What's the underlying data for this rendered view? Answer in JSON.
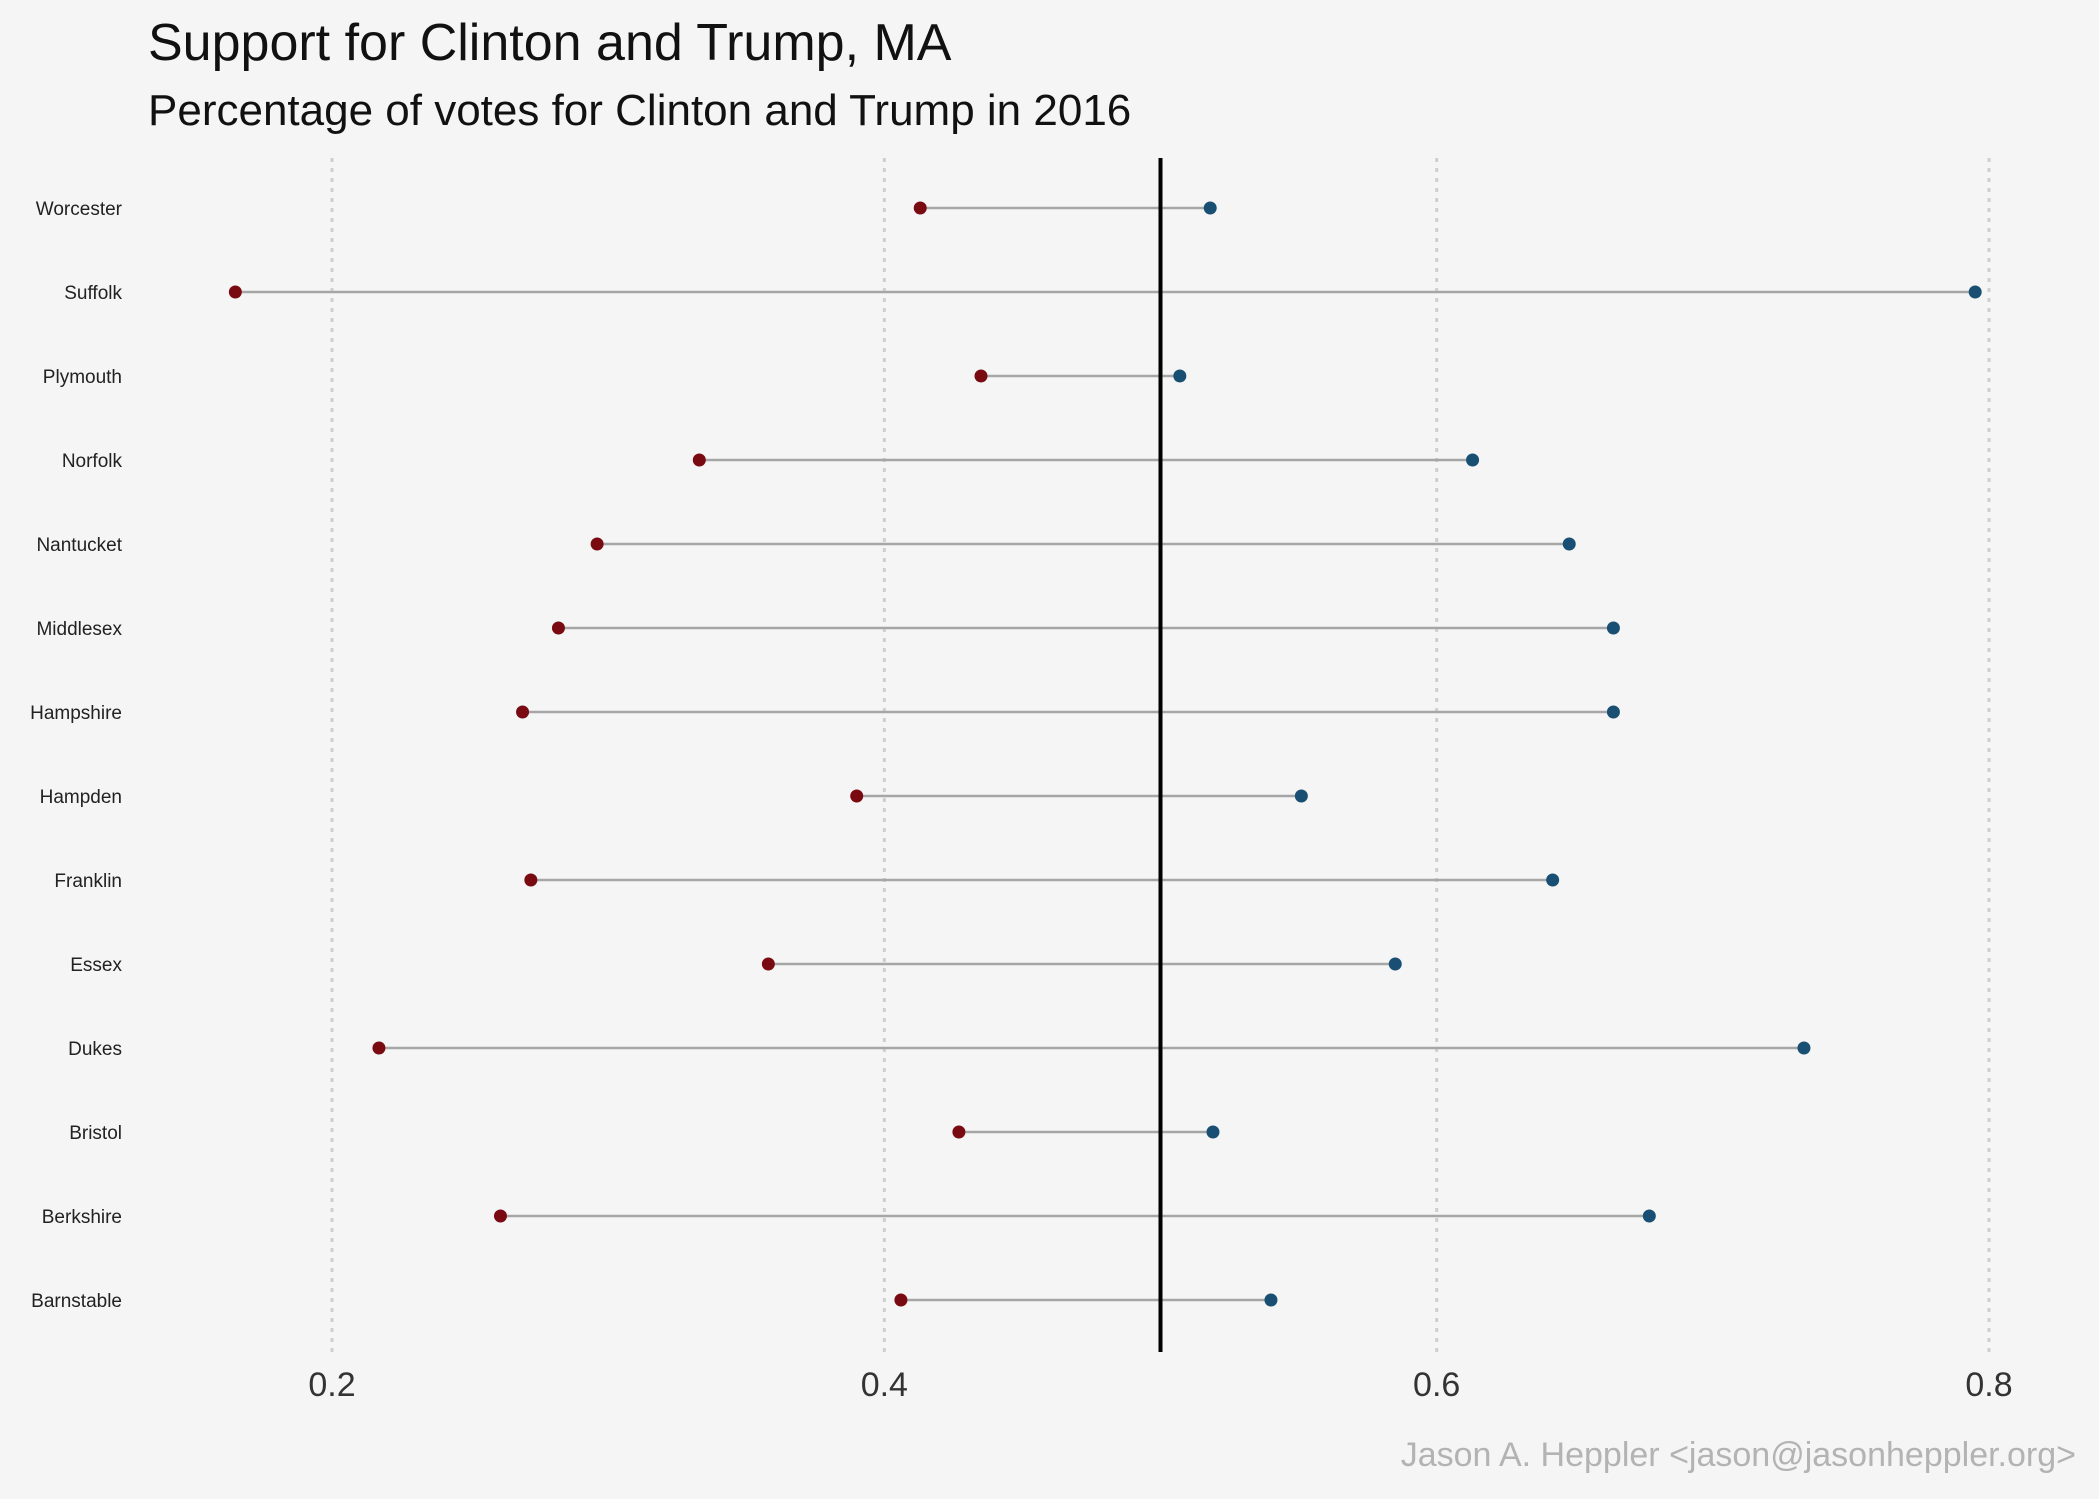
{
  "chart_data": {
    "type": "dumbbell",
    "title": "Support for Clinton and Trump,  MA",
    "subtitle": "Percentage of votes for Clinton and Trump in 2016",
    "caption": "Jason A. Heppler <jason@jasonheppler.org>",
    "xlabel": "",
    "ylabel": "",
    "xlim": [
      0.13,
      0.82
    ],
    "xticks": [
      0.2,
      0.4,
      0.6,
      0.8
    ],
    "xtick_labels": [
      "0.2",
      "0.4",
      "0.6",
      "0.8"
    ],
    "reference_line": 0.5,
    "grid": "vertical dotted",
    "legend": "none",
    "colors": {
      "background": "#f5f5f5",
      "trump": "#7a0a12",
      "clinton": "#1a4f74",
      "segment": "#a6a6a6",
      "reference": "#000000",
      "grid": "#cfcfcf",
      "text": "#111111",
      "caption": "#b3b3b3"
    },
    "categories": [
      "Worcester",
      "Suffolk",
      "Plymouth",
      "Norfolk",
      "Nantucket",
      "Middlesex",
      "Hampshire",
      "Hampden",
      "Franklin",
      "Essex",
      "Dukes",
      "Bristol",
      "Berkshire",
      "Barnstable"
    ],
    "series": [
      {
        "values": [
          0.413,
          0.165,
          0.435,
          0.333,
          0.296,
          0.282,
          0.269,
          0.39,
          0.272,
          0.358,
          0.217,
          0.427,
          0.261,
          0.406
        ]
      },
      {
        "values": [
          0.518,
          0.795,
          0.507,
          0.613,
          0.648,
          0.664,
          0.664,
          0.551,
          0.642,
          0.585,
          0.733,
          0.519,
          0.677,
          0.54
        ]
      }
    ]
  }
}
